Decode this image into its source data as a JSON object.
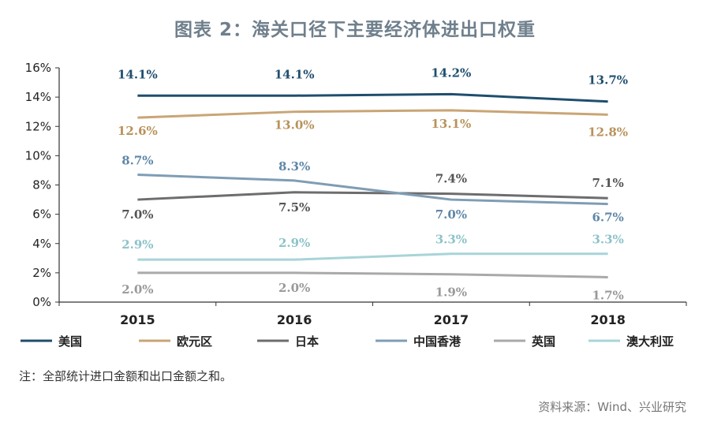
{
  "title": "图表 2：海关口径下主要经济体进出口权重",
  "note": "注：全部统计进口金额和出口金额之和。",
  "source": "资料来源：Wind、兴业研究",
  "chart_data": {
    "type": "line",
    "categories": [
      "2015",
      "2016",
      "2017",
      "2018"
    ],
    "ylim": [
      0,
      16
    ],
    "yticks": [
      "0%",
      "2%",
      "4%",
      "6%",
      "8%",
      "10%",
      "12%",
      "14%",
      "16%"
    ],
    "grid": false,
    "legend_position": "bottom",
    "series": [
      {
        "name": "美国",
        "values": [
          14.1,
          14.1,
          14.2,
          13.7
        ],
        "labels": [
          "14.1%",
          "14.1%",
          "14.2%",
          "13.7%"
        ],
        "color": "#1f4e6e",
        "label_color": "#1f4e6e"
      },
      {
        "name": "欧元区",
        "values": [
          12.6,
          13.0,
          13.1,
          12.8
        ],
        "labels": [
          "12.6%",
          "13.0%",
          "13.1%",
          "12.8%"
        ],
        "color": "#c9a575",
        "label_color": "#b8925a"
      },
      {
        "name": "日本",
        "values": [
          7.0,
          7.5,
          7.4,
          7.1
        ],
        "labels": [
          "7.0%",
          "7.5%",
          "7.4%",
          "7.1%"
        ],
        "color": "#6d6d6d",
        "label_color": "#555555"
      },
      {
        "name": "中国香港",
        "values": [
          8.7,
          8.3,
          7.0,
          6.7
        ],
        "labels": [
          "8.7%",
          "8.3%",
          "7.0%",
          "6.7%"
        ],
        "color": "#7f9db4",
        "label_color": "#5f87a8"
      },
      {
        "name": "英国",
        "values": [
          2.0,
          2.0,
          1.9,
          1.7
        ],
        "labels": [
          "2.0%",
          "2.0%",
          "1.9%",
          "1.7%"
        ],
        "color": "#a9a9a9",
        "label_color": "#999999"
      },
      {
        "name": "澳大利亚",
        "values": [
          2.9,
          2.9,
          3.3,
          3.3
        ],
        "labels": [
          "2.9%",
          "2.9%",
          "3.3%",
          "3.3%"
        ],
        "color": "#a8d4d8",
        "label_color": "#8cc3c9"
      }
    ]
  }
}
